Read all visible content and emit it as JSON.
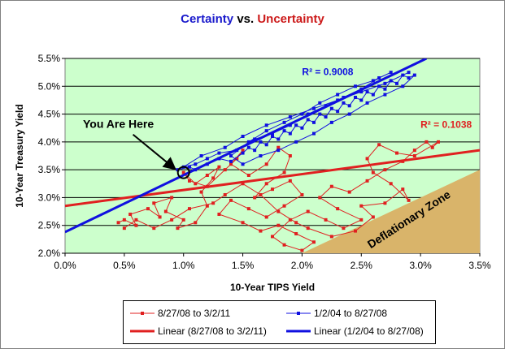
{
  "title": {
    "part1": "Certainty",
    "part2": " vs. ",
    "part3": "Uncertainty"
  },
  "colors": {
    "plot_bg": "#ccffcc",
    "red": "#e02020",
    "blue": "#1010e0",
    "zone": "#d9b46a"
  },
  "chart_data": {
    "type": "scatter",
    "xlabel": "10-Year TIPS Yield",
    "ylabel": "10-Year Treasury Yield",
    "xlim": [
      0,
      3.5
    ],
    "ylim": [
      2.0,
      5.5
    ],
    "x_ticks": [
      "0.0%",
      "0.5%",
      "1.0%",
      "1.5%",
      "2.0%",
      "2.5%",
      "3.0%",
      "3.5%"
    ],
    "y_ticks": [
      "2.0%",
      "2.5%",
      "3.0%",
      "3.5%",
      "4.0%",
      "4.5%",
      "5.0%",
      "5.5%"
    ],
    "grid": "horizontal",
    "series": [
      {
        "name": "8/27/08 to 3/2/11",
        "color": "#e02020",
        "marker": "dot-line",
        "points": [
          [
            0.45,
            2.55
          ],
          [
            0.5,
            2.6
          ],
          [
            0.6,
            2.5
          ],
          [
            0.55,
            2.7
          ],
          [
            0.7,
            2.8
          ],
          [
            0.8,
            2.65
          ],
          [
            0.75,
            2.9
          ],
          [
            0.9,
            3.0
          ],
          [
            0.85,
            2.75
          ],
          [
            1.0,
            2.6
          ],
          [
            0.95,
            2.45
          ],
          [
            1.1,
            2.55
          ],
          [
            1.2,
            2.85
          ],
          [
            1.15,
            3.1
          ],
          [
            1.25,
            3.35
          ],
          [
            1.3,
            3.55
          ],
          [
            1.2,
            3.4
          ],
          [
            1.1,
            3.25
          ],
          [
            1.0,
            3.45
          ],
          [
            1.05,
            3.3
          ],
          [
            1.2,
            3.2
          ],
          [
            1.35,
            3.5
          ],
          [
            1.45,
            3.7
          ],
          [
            1.5,
            3.85
          ],
          [
            1.4,
            3.6
          ],
          [
            1.55,
            3.4
          ],
          [
            1.7,
            3.6
          ],
          [
            1.8,
            3.9
          ],
          [
            1.9,
            3.75
          ],
          [
            1.85,
            3.45
          ],
          [
            1.7,
            3.25
          ],
          [
            1.6,
            3.0
          ],
          [
            1.75,
            3.15
          ],
          [
            1.9,
            3.3
          ],
          [
            2.0,
            3.05
          ],
          [
            1.85,
            2.85
          ],
          [
            1.7,
            2.65
          ],
          [
            1.55,
            2.8
          ],
          [
            1.4,
            2.95
          ],
          [
            1.3,
            2.7
          ],
          [
            1.5,
            2.55
          ],
          [
            1.65,
            2.4
          ],
          [
            1.8,
            2.5
          ],
          [
            1.95,
            2.35
          ],
          [
            2.1,
            2.2
          ],
          [
            2.0,
            2.05
          ],
          [
            1.85,
            2.15
          ],
          [
            1.75,
            2.3
          ],
          [
            1.9,
            2.6
          ],
          [
            2.05,
            2.75
          ],
          [
            2.2,
            2.6
          ],
          [
            2.35,
            2.45
          ],
          [
            2.5,
            2.6
          ],
          [
            2.3,
            2.8
          ],
          [
            2.15,
            3.0
          ],
          [
            2.25,
            3.2
          ],
          [
            2.4,
            3.1
          ],
          [
            2.55,
            3.3
          ],
          [
            2.7,
            3.5
          ],
          [
            2.85,
            3.65
          ],
          [
            2.95,
            3.85
          ],
          [
            3.05,
            4.0
          ],
          [
            3.1,
            3.9
          ],
          [
            3.15,
            4.0
          ],
          [
            2.95,
            3.75
          ],
          [
            2.8,
            3.8
          ],
          [
            2.65,
            3.95
          ],
          [
            2.55,
            3.7
          ],
          [
            2.6,
            3.45
          ],
          [
            2.75,
            3.25
          ],
          [
            2.9,
            2.95
          ],
          [
            2.85,
            3.15
          ],
          [
            2.7,
            2.9
          ],
          [
            2.5,
            2.85
          ],
          [
            2.6,
            2.65
          ],
          [
            2.45,
            2.4
          ],
          [
            2.25,
            2.3
          ],
          [
            2.05,
            2.45
          ],
          [
            1.95,
            2.55
          ],
          [
            1.8,
            2.75
          ],
          [
            1.65,
            3.05
          ],
          [
            1.5,
            3.25
          ],
          [
            1.35,
            3.05
          ],
          [
            1.25,
            2.9
          ],
          [
            1.05,
            2.8
          ],
          [
            0.9,
            2.6
          ],
          [
            0.75,
            2.45
          ],
          [
            0.6,
            2.6
          ],
          [
            0.5,
            2.45
          ]
        ]
      },
      {
        "name": "1/2/04 to 8/27/08",
        "color": "#1010e0",
        "marker": "dot-line",
        "points": [
          [
            0.95,
            3.5
          ],
          [
            1.05,
            3.55
          ],
          [
            1.1,
            3.5
          ],
          [
            1.2,
            3.6
          ],
          [
            1.3,
            3.7
          ],
          [
            1.4,
            3.65
          ],
          [
            1.5,
            3.8
          ],
          [
            1.55,
            3.9
          ],
          [
            1.6,
            3.85
          ],
          [
            1.65,
            4.0
          ],
          [
            1.7,
            3.95
          ],
          [
            1.75,
            4.1
          ],
          [
            1.8,
            4.05
          ],
          [
            1.85,
            4.2
          ],
          [
            1.9,
            4.15
          ],
          [
            1.95,
            4.3
          ],
          [
            2.0,
            4.25
          ],
          [
            2.05,
            4.4
          ],
          [
            2.1,
            4.35
          ],
          [
            2.15,
            4.5
          ],
          [
            2.2,
            4.45
          ],
          [
            2.25,
            4.6
          ],
          [
            2.3,
            4.55
          ],
          [
            2.35,
            4.7
          ],
          [
            2.4,
            4.65
          ],
          [
            2.45,
            4.8
          ],
          [
            2.5,
            4.75
          ],
          [
            2.55,
            4.9
          ],
          [
            2.6,
            4.85
          ],
          [
            2.65,
            5.0
          ],
          [
            2.7,
            4.95
          ],
          [
            2.75,
            5.1
          ],
          [
            2.8,
            5.05
          ],
          [
            2.85,
            5.2
          ],
          [
            2.9,
            5.15
          ],
          [
            2.95,
            5.2
          ],
          [
            2.85,
            5.0
          ],
          [
            2.7,
            4.85
          ],
          [
            2.55,
            4.7
          ],
          [
            2.4,
            4.5
          ],
          [
            2.25,
            4.35
          ],
          [
            2.1,
            4.15
          ],
          [
            1.95,
            4.0
          ],
          [
            1.8,
            3.85
          ],
          [
            1.65,
            3.75
          ],
          [
            1.5,
            3.6
          ],
          [
            1.4,
            3.75
          ],
          [
            1.55,
            4.0
          ],
          [
            1.7,
            4.2
          ],
          [
            1.85,
            4.35
          ],
          [
            2.0,
            4.5
          ],
          [
            2.15,
            4.7
          ],
          [
            2.3,
            4.85
          ],
          [
            2.45,
            5.0
          ],
          [
            2.6,
            5.1
          ],
          [
            2.75,
            5.25
          ],
          [
            2.65,
            5.15
          ],
          [
            2.5,
            4.95
          ],
          [
            2.35,
            4.8
          ],
          [
            2.2,
            4.65
          ],
          [
            2.05,
            4.5
          ],
          [
            1.9,
            4.3
          ],
          [
            1.75,
            4.15
          ],
          [
            1.6,
            4.05
          ],
          [
            1.45,
            3.85
          ],
          [
            1.3,
            3.8
          ],
          [
            1.2,
            3.7
          ],
          [
            1.1,
            3.6
          ],
          [
            1.0,
            3.55
          ],
          [
            1.15,
            3.75
          ],
          [
            1.35,
            3.9
          ],
          [
            1.5,
            4.1
          ],
          [
            1.7,
            4.3
          ],
          [
            1.9,
            4.45
          ],
          [
            2.1,
            4.6
          ],
          [
            2.3,
            4.75
          ],
          [
            2.5,
            4.9
          ],
          [
            2.7,
            5.05
          ],
          [
            2.9,
            5.25
          ]
        ]
      },
      {
        "name": "Linear (8/27/08 to 3/2/11)",
        "color": "#e02020",
        "type": "trendline",
        "line": [
          [
            0,
            2.85
          ],
          [
            3.5,
            3.85
          ]
        ],
        "r2_label": "R² = 0.1038",
        "r2_pos": [
          3.0,
          4.25
        ]
      },
      {
        "name": "Linear (1/2/04 to 8/27/08)",
        "color": "#1010e0",
        "type": "trendline",
        "line": [
          [
            0,
            2.38
          ],
          [
            3.05,
            5.5
          ]
        ],
        "r2_label": "R² = 0.9008",
        "r2_pos": [
          2.0,
          5.2
        ]
      }
    ],
    "annotations": [
      {
        "text": "You Are Here",
        "at": [
          1.0,
          3.45
        ],
        "text_pos": [
          0.45,
          4.25
        ]
      },
      {
        "text": "Deflationary Zone",
        "region": [
          [
            2.0,
            2.0
          ],
          [
            3.5,
            3.5
          ],
          [
            3.5,
            2.0
          ]
        ]
      }
    ],
    "legend": {
      "placement": "bottom"
    }
  }
}
